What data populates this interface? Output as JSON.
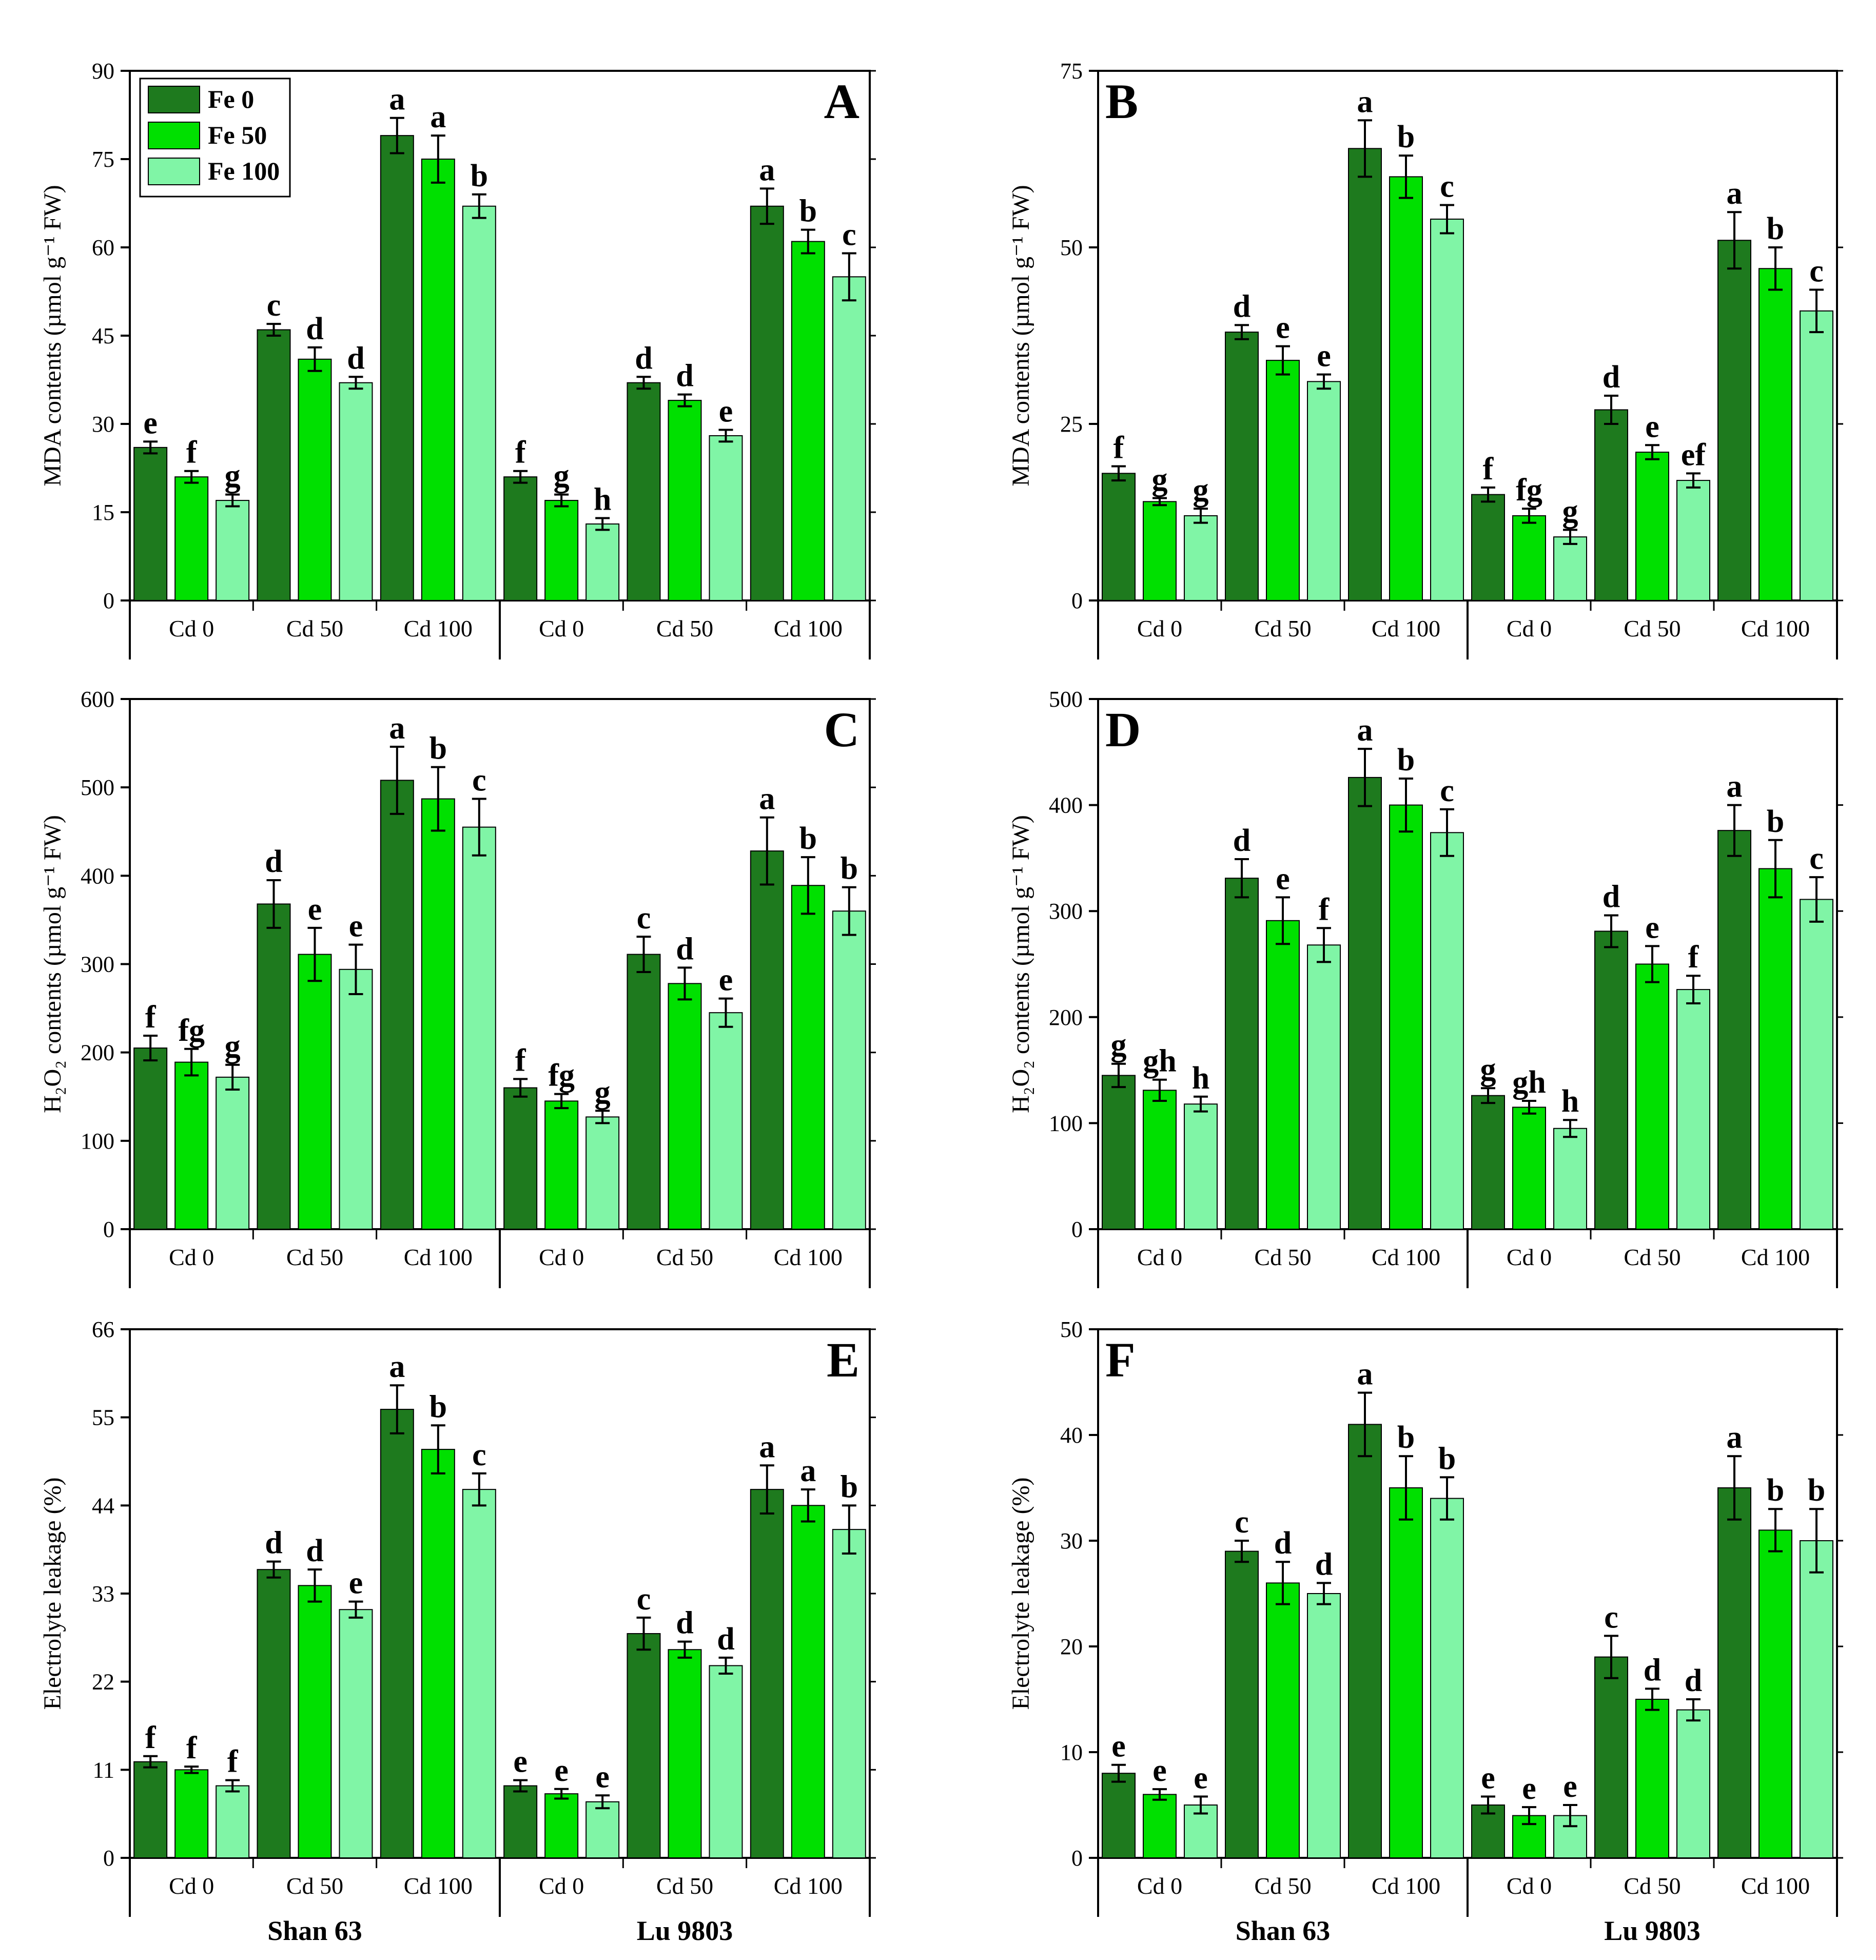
{
  "colors": {
    "fe0": "#1e7a1e",
    "fe50": "#00e000",
    "fe100": "#80f5a6",
    "axis": "#000000"
  },
  "legend": [
    "Fe 0",
    "Fe 50",
    "Fe 100"
  ],
  "cultivars": [
    "Shan 63",
    "Lu 9803"
  ],
  "cd_levels": [
    "Cd 0",
    "Cd 50",
    "Cd 100"
  ],
  "chart_data": [
    {
      "type": "bar",
      "panel": "A",
      "ylabel": "MDA contents (µmol g⁻¹ FW)",
      "ylim": [
        0,
        90
      ],
      "yticks": [
        0,
        15,
        30,
        45,
        60,
        75,
        90
      ],
      "categories": [
        "Cd 0",
        "Cd 50",
        "Cd 100",
        "Cd 0",
        "Cd 50",
        "Cd 100"
      ],
      "series": [
        {
          "name": "Fe 0",
          "values": [
            26,
            46,
            79,
            21,
            37,
            67
          ],
          "errors": [
            1,
            1,
            3,
            1,
            1,
            3
          ],
          "letters": [
            "e",
            "c",
            "a",
            "f",
            "d",
            "a"
          ]
        },
        {
          "name": "Fe 50",
          "values": [
            21,
            41,
            75,
            17,
            34,
            61
          ],
          "errors": [
            1,
            2,
            4,
            1,
            1,
            2
          ],
          "letters": [
            "f",
            "d",
            "a",
            "g",
            "d",
            "b"
          ]
        },
        {
          "name": "Fe 100",
          "values": [
            17,
            37,
            67,
            13,
            28,
            55
          ],
          "errors": [
            1,
            1,
            2,
            1,
            1,
            4
          ],
          "letters": [
            "g",
            "d",
            "b",
            "h",
            "e",
            "c"
          ]
        }
      ]
    },
    {
      "type": "bar",
      "panel": "B",
      "ylabel": "MDA contents (µmol g⁻¹ FW)",
      "ylim": [
        0,
        75
      ],
      "yticks": [
        0,
        25,
        50,
        75
      ],
      "categories": [
        "Cd 0",
        "Cd 50",
        "Cd 100",
        "Cd 0",
        "Cd 50",
        "Cd 100"
      ],
      "series": [
        {
          "name": "Fe 0",
          "values": [
            18,
            38,
            64,
            15,
            27,
            51
          ],
          "errors": [
            1,
            1,
            4,
            1,
            2,
            4
          ],
          "letters": [
            "f",
            "d",
            "a",
            "f",
            "d",
            "a"
          ]
        },
        {
          "name": "Fe 50",
          "values": [
            14,
            34,
            60,
            12,
            21,
            47
          ],
          "errors": [
            0.5,
            2,
            3,
            1,
            1,
            3
          ],
          "letters": [
            "g",
            "e",
            "b",
            "fg",
            "e",
            "b"
          ]
        },
        {
          "name": "Fe 100",
          "values": [
            12,
            31,
            54,
            9,
            17,
            41
          ],
          "errors": [
            1,
            1,
            2,
            1,
            1,
            3
          ],
          "letters": [
            "g",
            "e",
            "c",
            "g",
            "ef",
            "c"
          ]
        }
      ]
    },
    {
      "type": "bar",
      "panel": "C",
      "ylabel": "H₂O₂ contents (µmol g⁻¹ FW)",
      "ylim": [
        0,
        600
      ],
      "yticks": [
        0,
        100,
        200,
        300,
        400,
        500,
        600
      ],
      "categories": [
        "Cd 0",
        "Cd 50",
        "Cd 100",
        "Cd 0",
        "Cd 50",
        "Cd 100"
      ],
      "series": [
        {
          "name": "Fe 0",
          "values": [
            205,
            368,
            508,
            160,
            311,
            428
          ],
          "errors": [
            14,
            27,
            38,
            10,
            20,
            38
          ],
          "letters": [
            "f",
            "d",
            "a",
            "f",
            "c",
            "a"
          ]
        },
        {
          "name": "Fe 50",
          "values": [
            189,
            311,
            487,
            145,
            278,
            389
          ],
          "errors": [
            15,
            30,
            36,
            8,
            18,
            32
          ],
          "letters": [
            "fg",
            "e",
            "b",
            "fg",
            "d",
            "b"
          ]
        },
        {
          "name": "Fe 100",
          "values": [
            172,
            294,
            455,
            127,
            245,
            360
          ],
          "errors": [
            14,
            28,
            32,
            7,
            16,
            27
          ],
          "letters": [
            "g",
            "e",
            "c",
            "g",
            "e",
            "b"
          ]
        }
      ]
    },
    {
      "type": "bar",
      "panel": "D",
      "ylabel": "H₂O₂ contents (µmol g⁻¹ FW)",
      "ylim": [
        0,
        500
      ],
      "yticks": [
        0,
        100,
        200,
        300,
        400,
        500
      ],
      "categories": [
        "Cd 0",
        "Cd 50",
        "Cd 100",
        "Cd 0",
        "Cd 50",
        "Cd 100"
      ],
      "series": [
        {
          "name": "Fe 0",
          "values": [
            145,
            331,
            426,
            126,
            281,
            376
          ],
          "errors": [
            11,
            18,
            27,
            7,
            15,
            24
          ],
          "letters": [
            "g",
            "d",
            "a",
            "g",
            "d",
            "a"
          ]
        },
        {
          "name": "Fe 50",
          "values": [
            131,
            291,
            400,
            115,
            250,
            340
          ],
          "errors": [
            10,
            22,
            25,
            6,
            17,
            27
          ],
          "letters": [
            "gh",
            "e",
            "b",
            "gh",
            "e",
            "b"
          ]
        },
        {
          "name": "Fe 100",
          "values": [
            118,
            268,
            374,
            95,
            226,
            311
          ],
          "errors": [
            7,
            16,
            22,
            8,
            13,
            21
          ],
          "letters": [
            "h",
            "f",
            "c",
            "h",
            "f",
            "c"
          ]
        }
      ]
    },
    {
      "type": "bar",
      "panel": "E",
      "ylabel": "Electrolyte leakage (%)",
      "ylim": [
        0,
        66
      ],
      "yticks": [
        0,
        11,
        22,
        33,
        44,
        55,
        66
      ],
      "categories": [
        "Cd 0",
        "Cd 50",
        "Cd 100",
        "Cd 0",
        "Cd 50",
        "Cd 100"
      ],
      "series": [
        {
          "name": "Fe 0",
          "values": [
            12,
            36,
            56,
            9,
            28,
            46
          ],
          "errors": [
            0.7,
            1,
            3,
            0.7,
            2,
            3
          ],
          "letters": [
            "f",
            "d",
            "a",
            "e",
            "c",
            "a"
          ]
        },
        {
          "name": "Fe 50",
          "values": [
            11,
            34,
            51,
            8,
            26,
            44
          ],
          "errors": [
            0.4,
            2,
            3,
            0.6,
            1,
            2
          ],
          "letters": [
            "f",
            "d",
            "b",
            "e",
            "d",
            "a"
          ]
        },
        {
          "name": "Fe 100",
          "values": [
            9,
            31,
            46,
            7,
            24,
            41
          ],
          "errors": [
            0.7,
            1,
            2,
            0.8,
            1,
            3
          ],
          "letters": [
            "f",
            "e",
            "c",
            "e",
            "d",
            "b"
          ]
        }
      ]
    },
    {
      "type": "bar",
      "panel": "F",
      "ylabel": "Electrolyte leakage (%)",
      "ylim": [
        0,
        50
      ],
      "yticks": [
        0,
        10,
        20,
        30,
        40,
        50
      ],
      "categories": [
        "Cd 0",
        "Cd 50",
        "Cd 100",
        "Cd 0",
        "Cd 50",
        "Cd 100"
      ],
      "series": [
        {
          "name": "Fe 0",
          "values": [
            8,
            29,
            41,
            5,
            19,
            35
          ],
          "errors": [
            0.8,
            1,
            3,
            0.8,
            2,
            3
          ],
          "letters": [
            "e",
            "c",
            "a",
            "e",
            "c",
            "a"
          ]
        },
        {
          "name": "Fe 50",
          "values": [
            6,
            26,
            35,
            4,
            15,
            31
          ],
          "errors": [
            0.5,
            2,
            3,
            0.8,
            1,
            2
          ],
          "letters": [
            "e",
            "d",
            "b",
            "e",
            "d",
            "b"
          ]
        },
        {
          "name": "Fe 100",
          "values": [
            5,
            25,
            34,
            4,
            14,
            30
          ],
          "errors": [
            0.8,
            1,
            2,
            1,
            1,
            3
          ],
          "letters": [
            "e",
            "d",
            "b",
            "e",
            "d",
            "b"
          ]
        }
      ]
    }
  ]
}
